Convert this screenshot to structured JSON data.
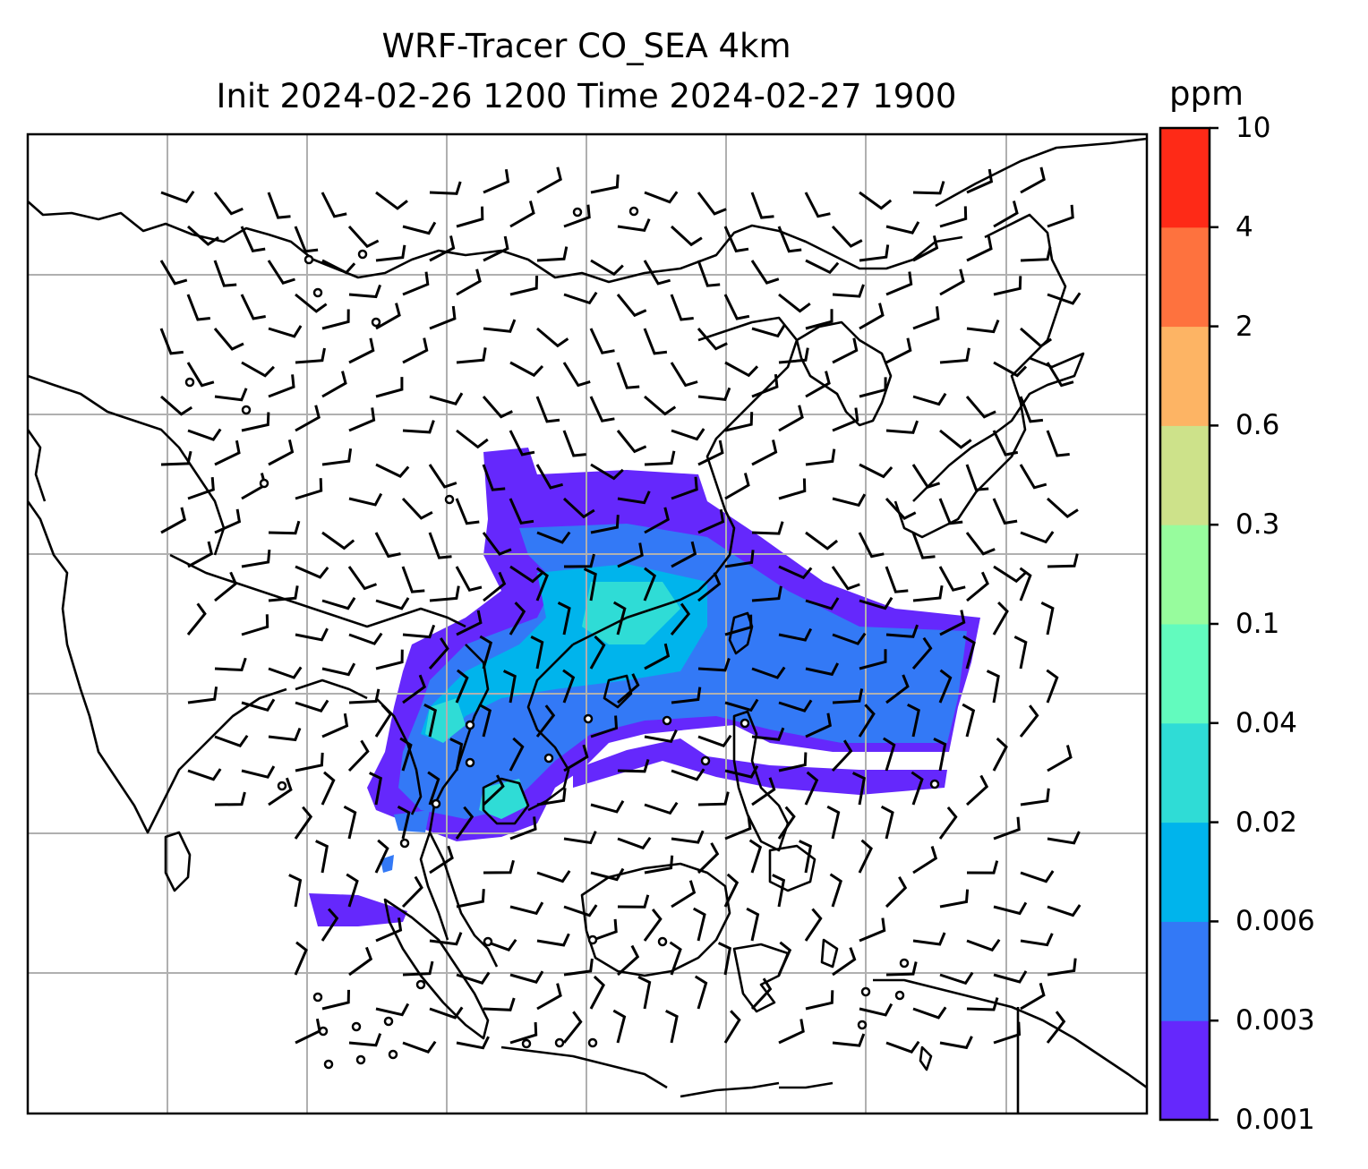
{
  "title": {
    "line1": "WRF-Tracer CO_SEA 4km",
    "line2": "Init 2024-02-26 1200 Time 2024-02-27 1900"
  },
  "colorbar": {
    "unit": "ppm",
    "ticks": [
      "0.001",
      "0.003",
      "0.006",
      "0.02",
      "0.04",
      "0.1",
      "0.3",
      "0.6",
      "2",
      "4",
      "10"
    ],
    "colors": [
      "#6528fc",
      "#3379f6",
      "#00b4ec",
      "#2fdcd6",
      "#62fbbe",
      "#97fc9d",
      "#cde28a",
      "#fdb464",
      "#fe723e",
      "#fe2a17"
    ]
  },
  "colors": {
    "grid": "#b0b0b0",
    "coast": "#000000",
    "barbs": "#000000"
  }
}
